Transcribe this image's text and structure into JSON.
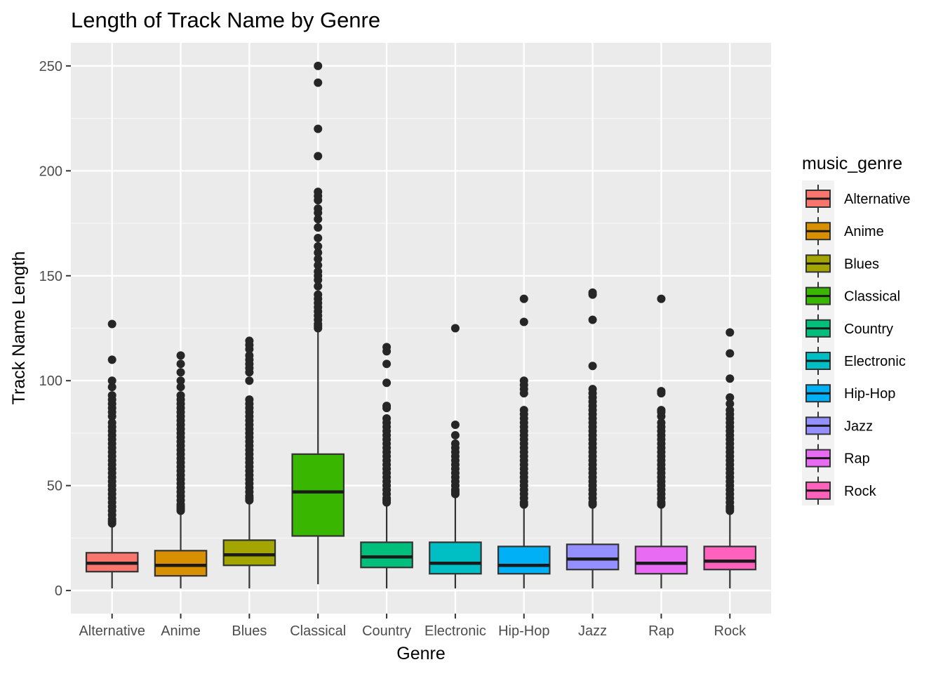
{
  "chart_data": {
    "type": "boxplot",
    "title": "Length of Track Name by Genre",
    "xlabel": "Genre",
    "ylabel": "Track Name Length",
    "ylim": [
      -11,
      261
    ],
    "yticks": [
      0,
      50,
      100,
      150,
      200,
      250
    ],
    "grid": true,
    "legend": {
      "title": "music_genre",
      "position": "right"
    },
    "categories": [
      "Alternative",
      "Anime",
      "Blues",
      "Classical",
      "Country",
      "Electronic",
      "Hip-Hop",
      "Jazz",
      "Rap",
      "Rock"
    ],
    "colors": [
      "#F8766D",
      "#D89000",
      "#A3A500",
      "#39B600",
      "#00BF7D",
      "#00BFC4",
      "#00B0F6",
      "#9590FF",
      "#E76BF3",
      "#FF62BC"
    ],
    "boxes": [
      {
        "q1": 9,
        "median": 13,
        "q3": 18,
        "whisker_low": 1,
        "whisker_high": 31,
        "outliers": [
          127,
          110,
          100,
          97,
          93,
          91,
          89,
          87,
          85,
          83,
          80,
          78,
          76,
          74,
          72,
          70,
          68,
          66,
          64,
          62,
          60,
          58,
          56,
          54,
          52,
          50,
          48,
          46,
          44,
          42,
          40,
          38,
          36,
          34,
          33,
          32
        ]
      },
      {
        "q1": 7,
        "median": 12,
        "q3": 19,
        "whisker_low": 1,
        "whisker_high": 37,
        "outliers": [
          112,
          108,
          104,
          100,
          97,
          93,
          91,
          89,
          87,
          85,
          83,
          81,
          79,
          77,
          75,
          73,
          71,
          69,
          67,
          65,
          63,
          61,
          59,
          57,
          55,
          53,
          51,
          49,
          47,
          45,
          43,
          41,
          40,
          39,
          38
        ]
      },
      {
        "q1": 12,
        "median": 17,
        "q3": 24,
        "whisker_low": 1,
        "whisker_high": 42,
        "outliers": [
          119,
          117,
          115,
          112,
          110,
          108,
          106,
          104,
          100,
          91,
          89,
          87,
          85,
          83,
          81,
          79,
          77,
          75,
          73,
          71,
          69,
          67,
          65,
          63,
          61,
          59,
          57,
          55,
          53,
          51,
          49,
          47,
          45,
          44,
          43
        ]
      },
      {
        "q1": 26,
        "median": 47,
        "q3": 65,
        "whisker_low": 3,
        "whisker_high": 124,
        "outliers": [
          250,
          242,
          220,
          207,
          190,
          188,
          186,
          182,
          180,
          177,
          173,
          168,
          164,
          161,
          158,
          155,
          152,
          150,
          148,
          145,
          141,
          139,
          137,
          135,
          133,
          131,
          129,
          127,
          126,
          125
        ]
      },
      {
        "q1": 11,
        "median": 16,
        "q3": 23,
        "whisker_low": 1,
        "whisker_high": 41,
        "outliers": [
          116,
          114,
          108,
          99,
          88,
          87,
          82,
          80,
          78,
          76,
          74,
          72,
          70,
          68,
          66,
          64,
          62,
          60,
          58,
          56,
          54,
          52,
          50,
          48,
          46,
          44,
          43,
          42
        ]
      },
      {
        "q1": 8,
        "median": 13,
        "q3": 23,
        "whisker_low": 1,
        "whisker_high": 45,
        "outliers": [
          125,
          79,
          74,
          70,
          68,
          66,
          64,
          62,
          60,
          58,
          56,
          54,
          52,
          50,
          48,
          47,
          46
        ]
      },
      {
        "q1": 8,
        "median": 12,
        "q3": 21,
        "whisker_low": 1,
        "whisker_high": 40,
        "outliers": [
          139,
          128,
          100,
          98,
          96,
          94,
          86,
          84,
          82,
          80,
          78,
          76,
          74,
          72,
          70,
          68,
          66,
          64,
          62,
          60,
          58,
          56,
          54,
          52,
          50,
          48,
          46,
          44,
          42,
          41
        ]
      },
      {
        "q1": 10,
        "median": 15,
        "q3": 22,
        "whisker_low": 1,
        "whisker_high": 40,
        "outliers": [
          142,
          141,
          129,
          107,
          96,
          94,
          92,
          90,
          88,
          86,
          84,
          82,
          80,
          78,
          76,
          74,
          72,
          70,
          68,
          66,
          64,
          62,
          60,
          58,
          56,
          54,
          52,
          50,
          48,
          46,
          44,
          42,
          41
        ]
      },
      {
        "q1": 8,
        "median": 13,
        "q3": 21,
        "whisker_low": 1,
        "whisker_high": 40,
        "outliers": [
          139,
          95,
          94,
          86,
          85,
          83,
          80,
          78,
          76,
          74,
          72,
          70,
          68,
          66,
          64,
          62,
          60,
          58,
          56,
          54,
          52,
          50,
          48,
          46,
          44,
          42,
          41
        ]
      },
      {
        "q1": 10,
        "median": 14,
        "q3": 21,
        "whisker_low": 1,
        "whisker_high": 37,
        "outliers": [
          123,
          113,
          101,
          92,
          89,
          86,
          84,
          82,
          80,
          78,
          76,
          74,
          72,
          70,
          68,
          66,
          64,
          62,
          60,
          58,
          56,
          54,
          52,
          50,
          48,
          46,
          44,
          42,
          40,
          39,
          38
        ]
      }
    ]
  }
}
